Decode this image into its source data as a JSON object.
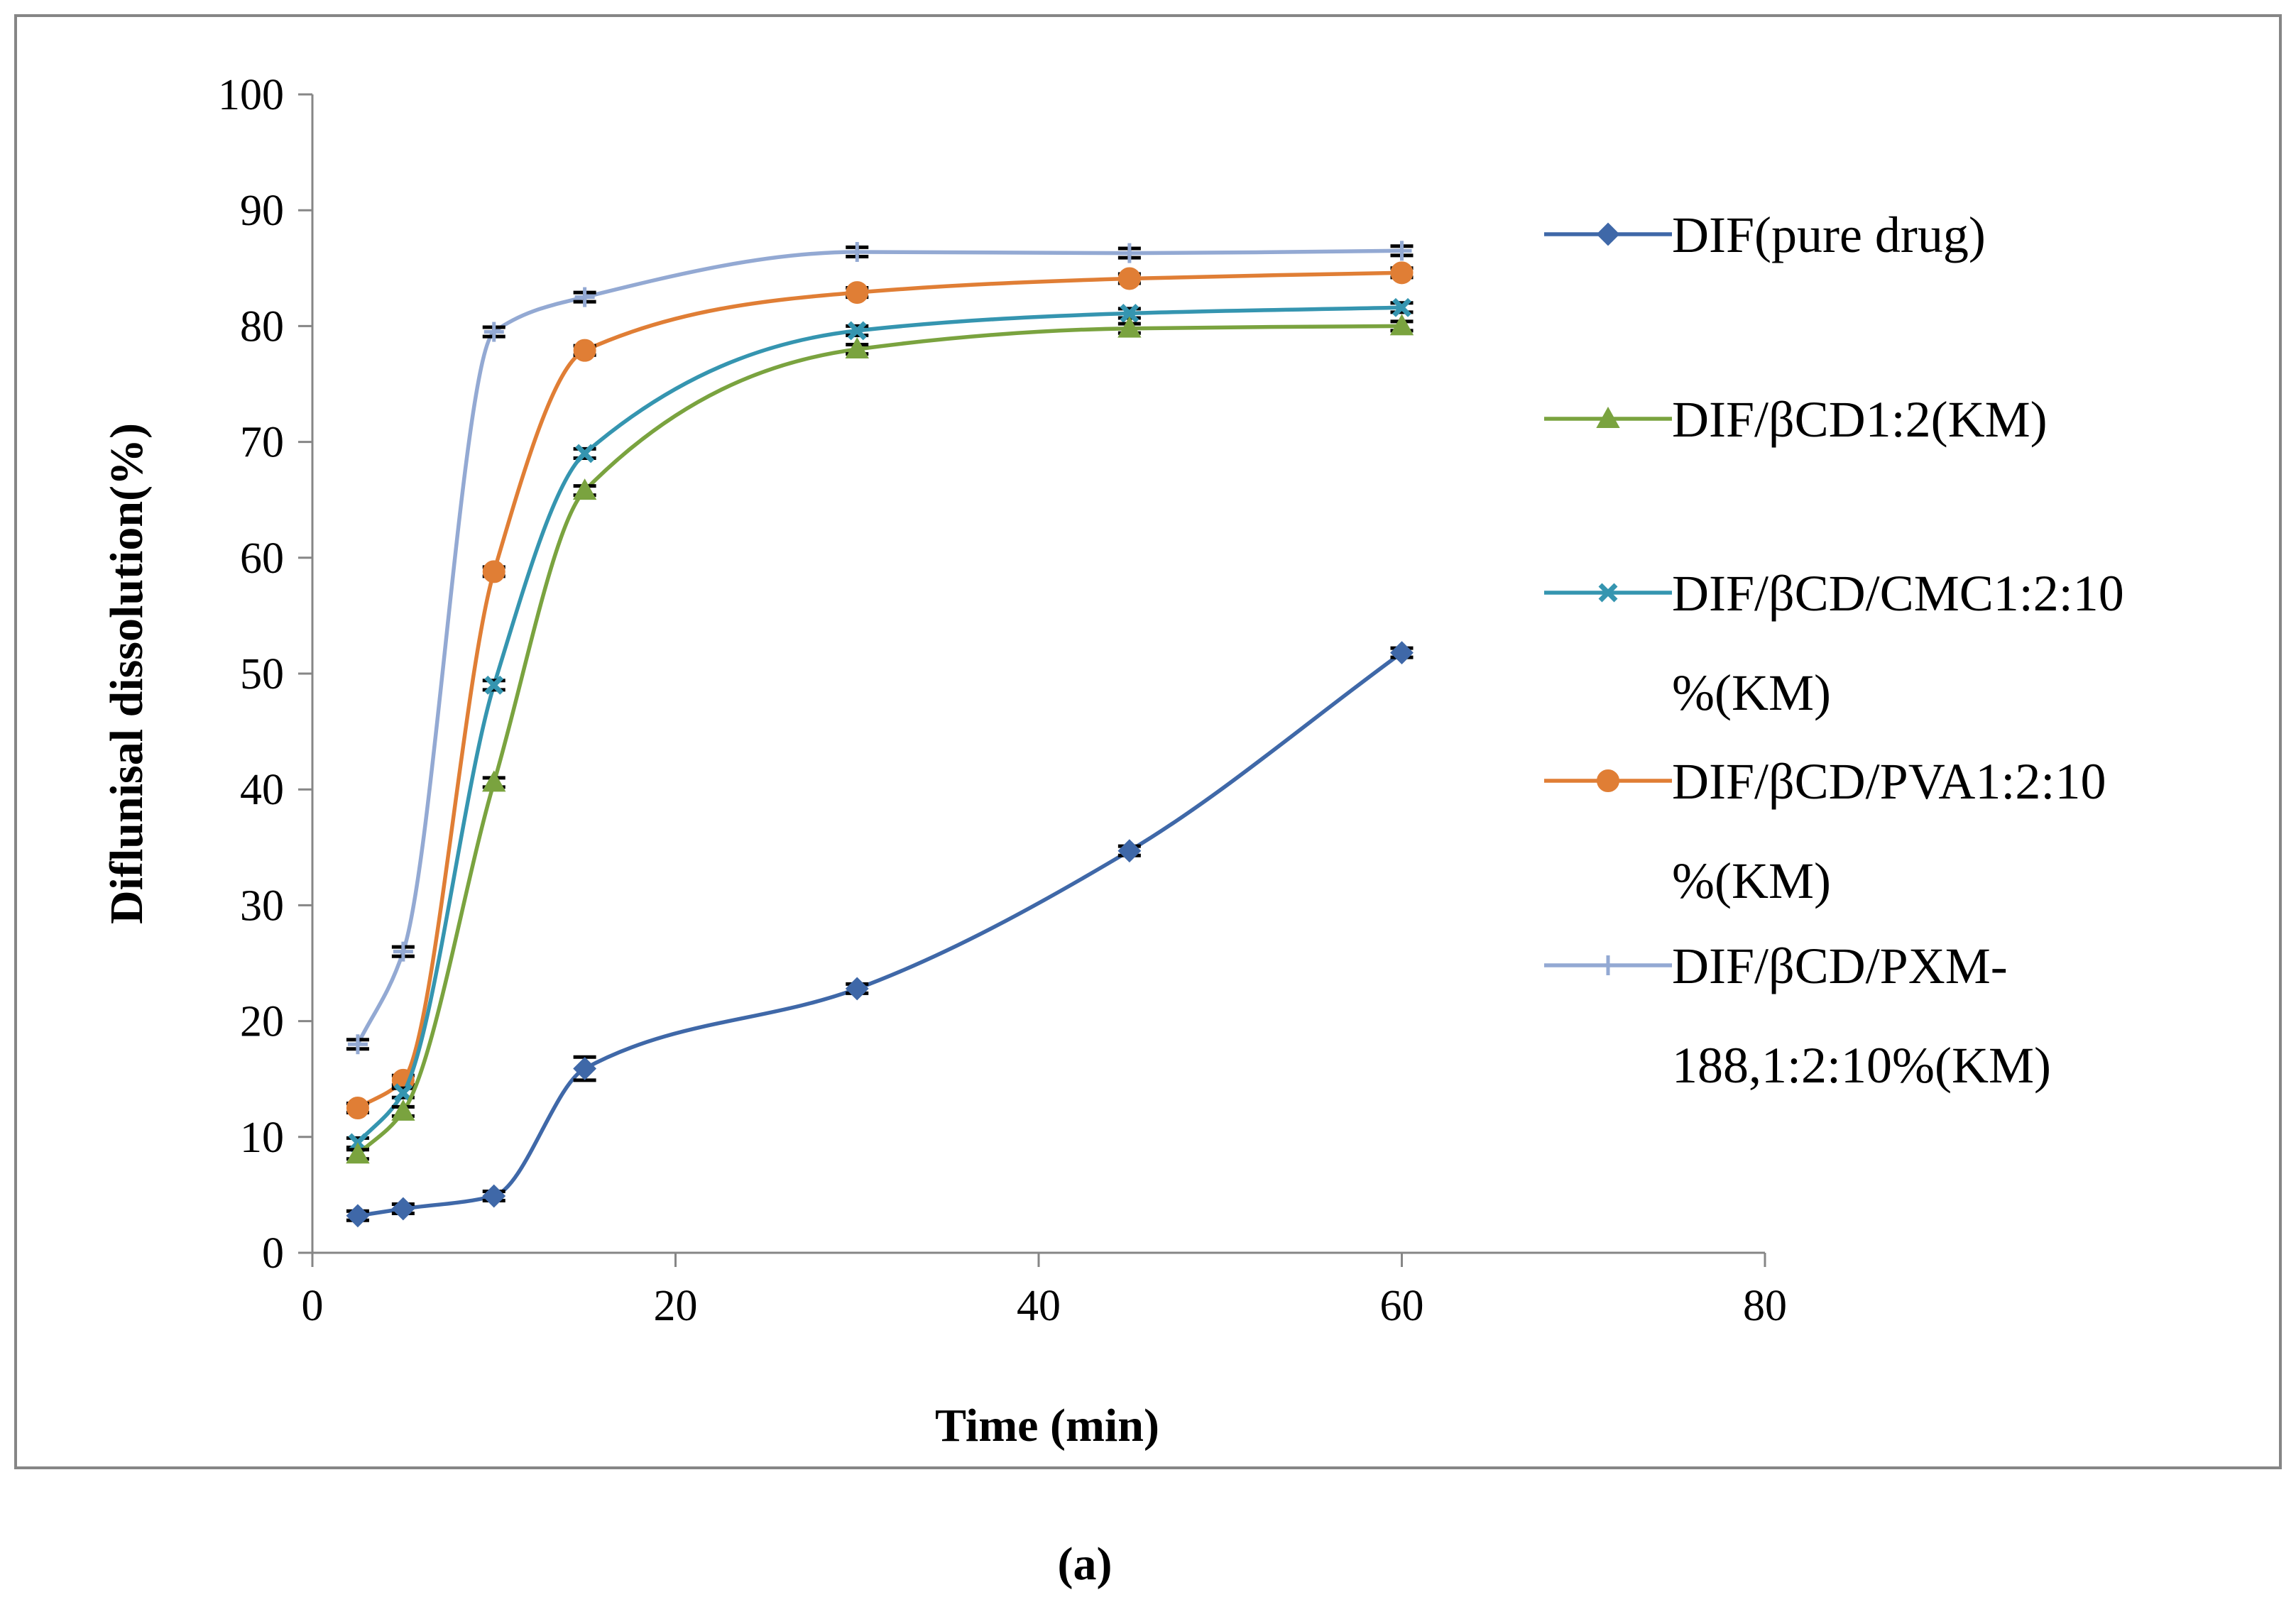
{
  "chart_data": {
    "type": "line",
    "title": "",
    "xlabel": "Time (min)",
    "ylabel": "Diflunisal dissolution(%)",
    "xlim": [
      0,
      80
    ],
    "ylim": [
      0,
      100
    ],
    "x_ticks": [
      "0",
      "20",
      "40",
      "60",
      "80"
    ],
    "y_ticks": [
      "0",
      "10",
      "20",
      "30",
      "40",
      "50",
      "60",
      "70",
      "80",
      "90",
      "100"
    ],
    "grid": false,
    "legend_position": "right",
    "caption": "(a)",
    "x": [
      2.5,
      5,
      10,
      15,
      30,
      45,
      60
    ],
    "series": [
      {
        "name": "DIF(pure drug)",
        "legend_lines": [
          "DIF(pure drug)"
        ],
        "color": "#3F68A8",
        "marker": "diamond",
        "values": [
          3.2,
          3.8,
          4.9,
          15.9,
          22.8,
          34.7,
          51.8
        ],
        "errors": [
          0.4,
          0.4,
          0.4,
          1.0,
          0.4,
          0.4,
          0.4
        ]
      },
      {
        "name": "DIF/βCD1:2(KM)",
        "legend_lines": [
          "DIF/βCD1:2(KM)"
        ],
        "color": "#7AA33F",
        "marker": "triangle",
        "values": [
          8.5,
          12.2,
          40.6,
          65.8,
          78.0,
          79.8,
          80.0
        ],
        "errors": [
          0.4,
          0.4,
          0.4,
          0.4,
          0.4,
          0.4,
          0.4
        ]
      },
      {
        "name": "DIF/βCD/CMC1:2:10%(KM)",
        "legend_lines": [
          "DIF/βCD/CMC1:2:10",
          "%(KM)"
        ],
        "color": "#3595B0",
        "marker": "x",
        "values": [
          9.5,
          13.8,
          49.0,
          69.0,
          79.6,
          81.1,
          81.6
        ],
        "errors": [
          0.4,
          0.4,
          0.4,
          0.4,
          0.4,
          0.4,
          0.4
        ]
      },
      {
        "name": "DIF/βCD/PVA1:2:10%(KM)",
        "legend_lines": [
          "DIF/βCD/PVA1:2:10",
          "%(KM)"
        ],
        "color": "#E07E35",
        "marker": "circle",
        "values": [
          12.5,
          14.9,
          58.8,
          77.9,
          82.9,
          84.1,
          84.6
        ],
        "errors": [
          0.4,
          0.4,
          0.4,
          0.4,
          0.4,
          0.4,
          0.4
        ]
      },
      {
        "name": "DIF/βCD/PXM-188,1:2:10%(KM)",
        "legend_lines": [
          "DIF/βCD/PXM-",
          "188,1:2:10%(KM)"
        ],
        "color": "#93A9D3",
        "marker": "plus",
        "values": [
          18.0,
          26.0,
          79.5,
          82.5,
          86.4,
          86.3,
          86.5
        ],
        "errors": [
          0.4,
          0.4,
          0.4,
          0.4,
          0.4,
          0.4,
          0.4
        ]
      }
    ]
  }
}
